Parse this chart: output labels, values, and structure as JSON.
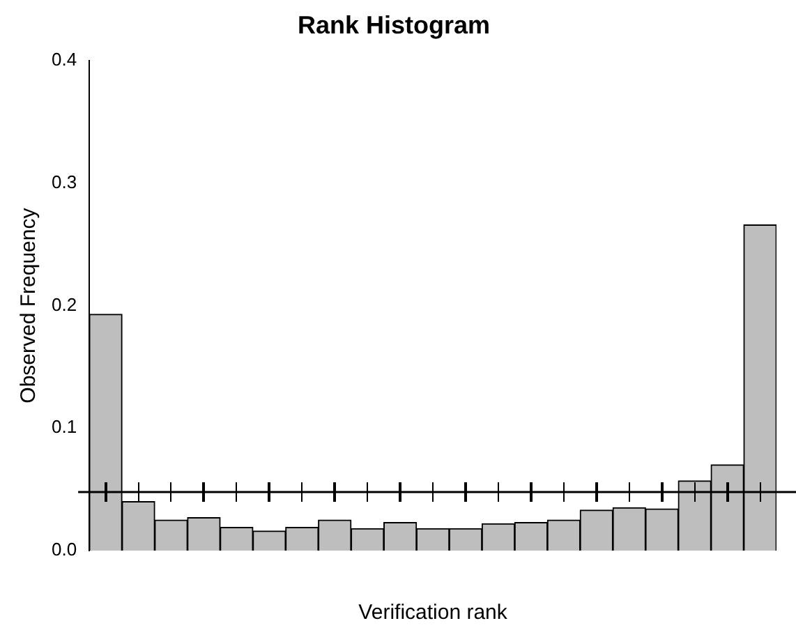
{
  "chart_data": {
    "type": "bar",
    "title": "Rank Histogram",
    "xlabel": "Verification rank",
    "ylabel": "Observed Frequency",
    "categories": [
      null,
      null,
      null,
      null,
      null,
      null,
      null,
      null,
      null,
      null,
      null,
      null,
      null,
      null,
      null,
      null,
      null,
      null,
      null,
      null,
      null
    ],
    "values": [
      0.193,
      0.04,
      0.025,
      0.027,
      0.019,
      0.016,
      0.019,
      0.025,
      0.018,
      0.023,
      0.018,
      0.018,
      0.022,
      0.023,
      0.025,
      0.033,
      0.035,
      0.034,
      0.057,
      0.07,
      0.266
    ],
    "color": "#bebebe",
    "ylim": [
      0,
      0.4
    ],
    "yticks": [
      {
        "value": 0,
        "label": "0.0"
      },
      0.1,
      0.2,
      0.3,
      0.4
    ],
    "ref_lines": [
      {
        "axis": "y",
        "value": 0.0478,
        "color": "#000000"
      }
    ],
    "grid": false,
    "legend": false
  }
}
